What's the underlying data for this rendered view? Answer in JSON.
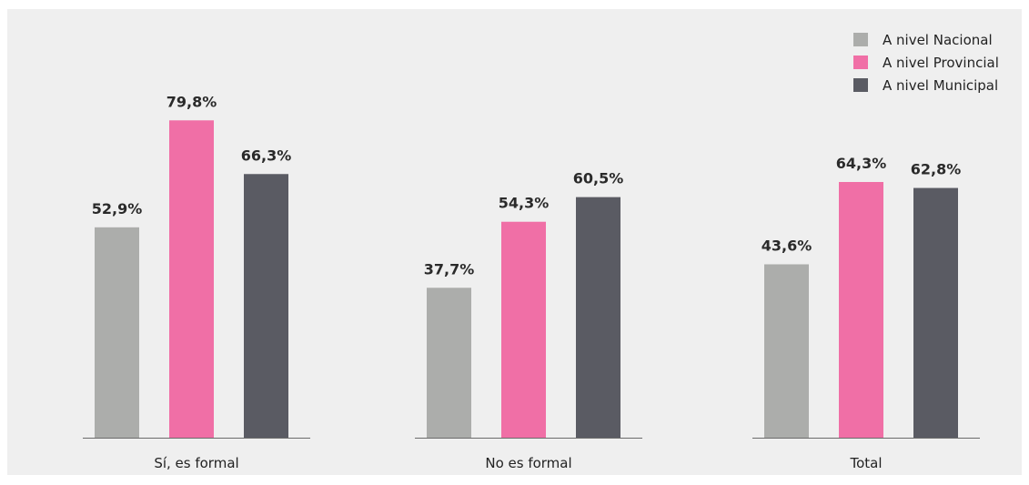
{
  "chart_data": {
    "type": "bar",
    "categories": [
      "Sí, es formal",
      "No es formal",
      "Total"
    ],
    "series": [
      {
        "name": "A nivel Nacional",
        "color": "#acadab",
        "values": [
          52.9,
          37.7,
          43.6
        ],
        "labels": [
          "52,9%",
          "37,7%",
          "43,6%"
        ]
      },
      {
        "name": "A nivel Provincial",
        "color": "#f06fa6",
        "values": [
          79.8,
          54.3,
          64.3
        ],
        "labels": [
          "79,8%",
          "54,3%",
          "64,3%"
        ]
      },
      {
        "name": "A nivel Municipal",
        "color": "#5a5b63",
        "values": [
          66.3,
          60.5,
          62.8
        ],
        "labels": [
          "66,3%",
          "60,5%",
          "62,8%"
        ]
      }
    ],
    "ylim": [
      0,
      100
    ],
    "grid": false,
    "legend_position": "top-right"
  }
}
